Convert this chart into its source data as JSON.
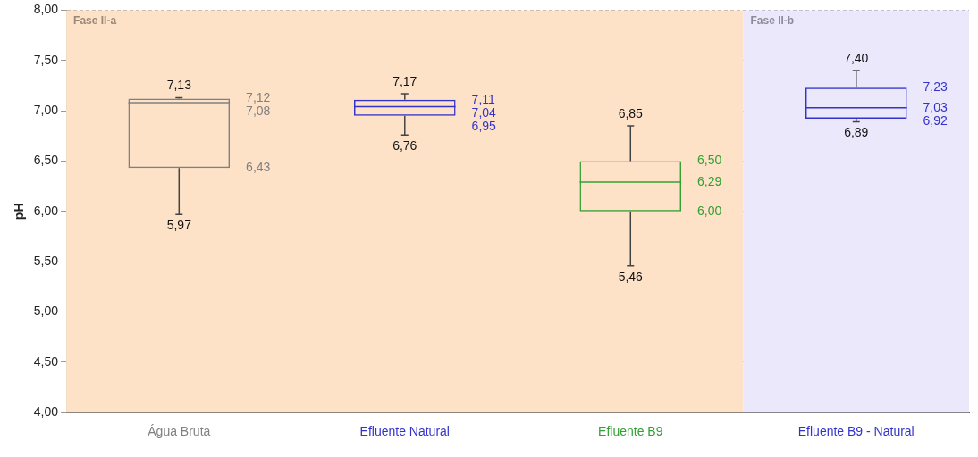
{
  "chart_data": {
    "type": "box",
    "ylabel": "pH",
    "categories": [
      "Água Bruta",
      "Efluente Natural",
      "Efluente B9",
      "Efluente B9 - Natural"
    ],
    "colors": [
      "#808080",
      "#3333cc",
      "#33a033",
      "#3333cc"
    ],
    "boxes": [
      {
        "low": 5.97,
        "q1": 6.43,
        "median": 7.08,
        "q3": 7.12,
        "high": 7.13
      },
      {
        "low": 6.76,
        "q1": 6.95,
        "median": 7.04,
        "q3": 7.11,
        "high": 7.17
      },
      {
        "low": 5.46,
        "q1": 6.0,
        "median": 6.29,
        "q3": 6.5,
        "high": 6.85
      },
      {
        "low": 6.89,
        "q1": 6.92,
        "median": 7.03,
        "q3": 7.23,
        "high": 7.4
      }
    ],
    "ylim": [
      4,
      8
    ],
    "yticks": [
      {
        "value": 4,
        "label": "4,00"
      },
      {
        "value": 4.5,
        "label": "4,50"
      },
      {
        "value": 5,
        "label": "5,00"
      },
      {
        "value": 5.5,
        "label": "5,50"
      },
      {
        "value": 6,
        "label": "6,00"
      },
      {
        "value": 6.5,
        "label": "6,50"
      },
      {
        "value": 7,
        "label": "7,00"
      },
      {
        "value": 7.5,
        "label": "7,50"
      },
      {
        "value": 8,
        "label": "8,00"
      }
    ],
    "grid": "y",
    "legend": false,
    "annotations": [
      {
        "text": "7,13",
        "x": "Água Bruta",
        "y": 7.13
      },
      "7,12",
      "7,08",
      "6,43",
      {
        "text": "5,97",
        "x": "Água Bruta",
        "y": 5.97
      },
      {
        "text": "7,17",
        "x": "Efluente Natural",
        "y": 7.17
      },
      "7,11",
      "7,04",
      "6,95",
      {
        "text": "6,76",
        "x": "Efluente Natural",
        "y": 6.76
      },
      {
        "text": "6,85",
        "x": "Efluente B9",
        "y": 6.85
      },
      "6,50",
      "6,29",
      "6,00",
      {
        "text": "5,46",
        "x": "Efluente B9",
        "y": 5.46
      },
      {
        "text": "7,40",
        "x": "Efluente B9 - Natural",
        "y": 7.4
      },
      "7,23",
      "7,03",
      "6,92",
      {
        "text": "6,89",
        "x": "Efluente B9 - Natural",
        "y": 6.89
      }
    ],
    "bands": [
      {
        "axis": "x",
        "from": "Água Bruta",
        "to": "Efluente B9",
        "label": "Fase II-a",
        "color": "#fde2c8"
      },
      {
        "axis": "x",
        "from": "Efluente B9 - Natural",
        "to": "Efluente B9 - Natural",
        "label": "Fase II-b",
        "color": "#ebe8fb"
      }
    ]
  }
}
